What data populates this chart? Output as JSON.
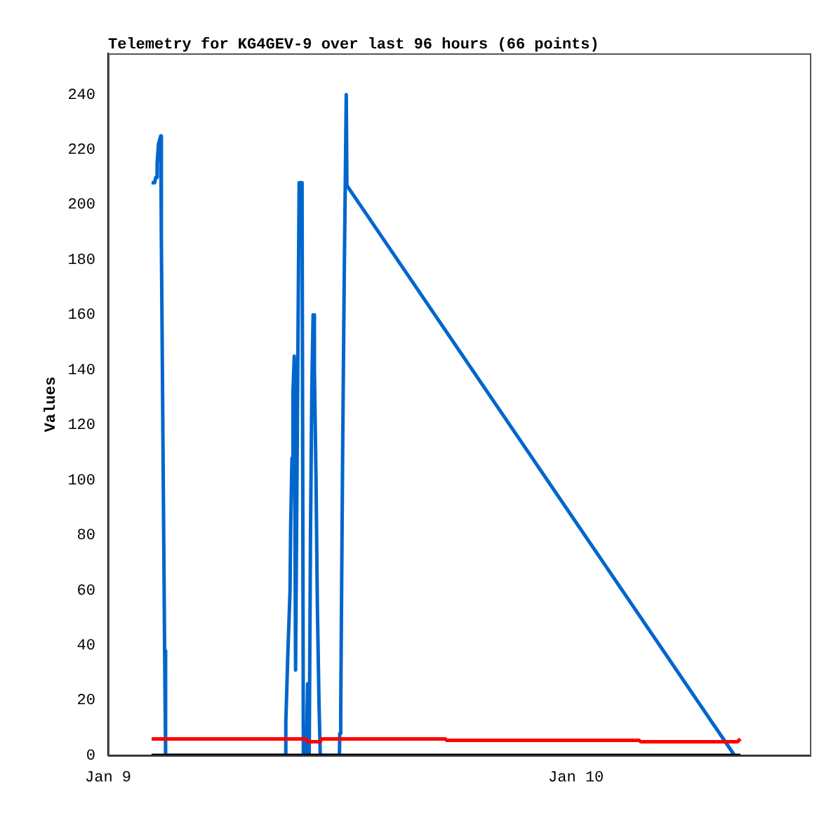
{
  "chart_data": {
    "type": "line",
    "title": "Telemetry for KG4GEV-9 over last 96 hours (66 points)",
    "ylabel": "Values",
    "xlim": [
      "--01-09T00:00",
      "--01-10T12:00"
    ],
    "xticks": [
      {
        "value": "--01-09",
        "label": "Jan 9"
      },
      {
        "value": "--01-10",
        "label": "Jan 10"
      }
    ],
    "ylim": [
      0,
      255
    ],
    "yticks": [
      0,
      20,
      40,
      60,
      80,
      100,
      120,
      140,
      160,
      180,
      200,
      220,
      240
    ],
    "grid": false,
    "legend": false,
    "marker": "none",
    "series": [
      {
        "color": "#0066cc",
        "x": [
          "--01-09T02:14",
          "--01-09T02:23",
          "--01-09T02:27",
          "--01-09T02:31",
          "--01-09T02:35",
          "--01-09T02:42",
          "--01-09T02:44",
          "--01-09T02:49",
          "--01-09T02:54",
          "--01-09T02:57",
          "--01-09T09:06",
          "--01-09T09:07",
          "--01-09T09:13",
          "--01-09T09:20",
          "--01-09T09:22",
          "--01-09T09:26",
          "--01-09T09:29",
          "--01-09T09:33",
          "--01-09T09:37",
          "--01-09T09:48",
          "--01-09T09:57",
          "--01-09T10:01",
          "--01-09T10:10",
          "--01-09T10:14",
          "--01-09T10:19",
          "--01-09T10:23",
          "--01-09T10:27",
          "--01-09T10:31",
          "--01-09T10:35",
          "--01-09T10:40",
          "--01-09T10:44",
          "--01-09T10:49",
          "--01-09T10:53",
          "--01-09T11:52",
          "--01-09T11:53",
          "--01-09T11:56",
          "--01-09T11:58",
          "--01-09T12:02",
          "--01-09T12:07",
          "--01-09T12:13",
          "--01-09T12:15",
          "--01-10T08:08"
        ],
        "values": [
          208,
          208,
          210,
          215,
          222,
          225,
          187,
          112,
          38,
          0,
          0,
          12,
          36,
          60,
          84,
          108,
          132,
          145,
          31,
          208,
          208,
          0,
          0,
          26,
          0,
          81,
          133,
          160,
          140,
          100,
          55,
          20,
          0,
          0,
          8,
          16,
          48,
          112,
          176,
          240,
          207,
          0
        ]
      },
      {
        "color": "#ff0000",
        "x": [
          "--01-09T02:14",
          "--01-09T10:10",
          "--01-09T10:14",
          "--01-09T10:53",
          "--01-09T10:57",
          "--01-09T17:18",
          "--01-09T17:22",
          "--01-10T03:14",
          "--01-10T03:19",
          "--01-10T08:17",
          "--01-10T08:26"
        ],
        "values": [
          6,
          6,
          5,
          5,
          6,
          6,
          5.5,
          5.5,
          5,
          5,
          6
        ]
      },
      {
        "color": "#000000",
        "x": [
          "--01-09T02:14",
          "--01-10T08:26"
        ],
        "values": [
          0,
          0
        ]
      }
    ]
  }
}
